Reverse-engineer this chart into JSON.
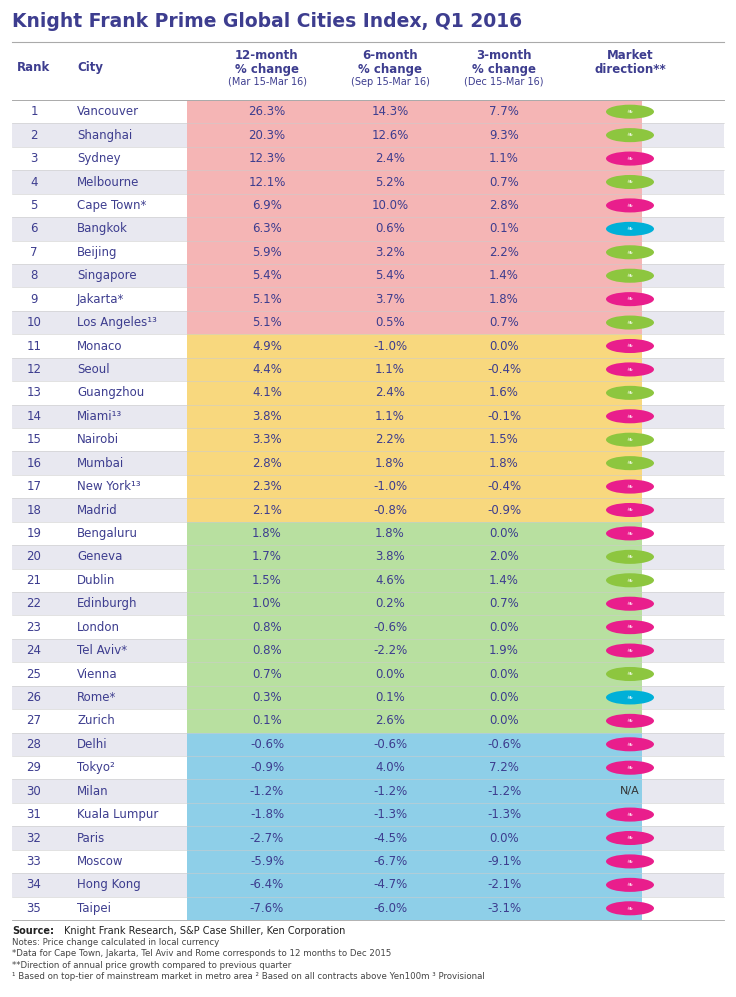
{
  "title": "Knight Frank Prime Global Cities Index, Q1 2016",
  "rows": [
    [
      1,
      "Vancouver",
      "26.3%",
      "14.3%",
      "7.7%",
      "lime"
    ],
    [
      2,
      "Shanghai",
      "20.3%",
      "12.6%",
      "9.3%",
      "lime"
    ],
    [
      3,
      "Sydney",
      "12.3%",
      "2.4%",
      "1.1%",
      "red"
    ],
    [
      4,
      "Melbourne",
      "12.1%",
      "5.2%",
      "0.7%",
      "lime"
    ],
    [
      5,
      "Cape Town*",
      "6.9%",
      "10.0%",
      "2.8%",
      "red"
    ],
    [
      6,
      "Bangkok",
      "6.3%",
      "0.6%",
      "0.1%",
      "cyan"
    ],
    [
      7,
      "Beijing",
      "5.9%",
      "3.2%",
      "2.2%",
      "lime"
    ],
    [
      8,
      "Singapore",
      "5.4%",
      "5.4%",
      "1.4%",
      "lime"
    ],
    [
      9,
      "Jakarta*",
      "5.1%",
      "3.7%",
      "1.8%",
      "red"
    ],
    [
      10,
      "Los Angeles¹³",
      "5.1%",
      "0.5%",
      "0.7%",
      "lime"
    ],
    [
      11,
      "Monaco",
      "4.9%",
      "-1.0%",
      "0.0%",
      "red"
    ],
    [
      12,
      "Seoul",
      "4.4%",
      "1.1%",
      "-0.4%",
      "red"
    ],
    [
      13,
      "Guangzhou",
      "4.1%",
      "2.4%",
      "1.6%",
      "lime"
    ],
    [
      14,
      "Miami¹³",
      "3.8%",
      "1.1%",
      "-0.1%",
      "red"
    ],
    [
      15,
      "Nairobi",
      "3.3%",
      "2.2%",
      "1.5%",
      "lime"
    ],
    [
      16,
      "Mumbai",
      "2.8%",
      "1.8%",
      "1.8%",
      "lime"
    ],
    [
      17,
      "New York¹³",
      "2.3%",
      "-1.0%",
      "-0.4%",
      "red"
    ],
    [
      18,
      "Madrid",
      "2.1%",
      "-0.8%",
      "-0.9%",
      "red"
    ],
    [
      19,
      "Bengaluru",
      "1.8%",
      "1.8%",
      "0.0%",
      "red"
    ],
    [
      20,
      "Geneva",
      "1.7%",
      "3.8%",
      "2.0%",
      "lime"
    ],
    [
      21,
      "Dublin",
      "1.5%",
      "4.6%",
      "1.4%",
      "lime"
    ],
    [
      22,
      "Edinburgh",
      "1.0%",
      "0.2%",
      "0.7%",
      "red"
    ],
    [
      23,
      "London",
      "0.8%",
      "-0.6%",
      "0.0%",
      "red"
    ],
    [
      24,
      "Tel Aviv*",
      "0.8%",
      "-2.2%",
      "1.9%",
      "red"
    ],
    [
      25,
      "Vienna",
      "0.7%",
      "0.0%",
      "0.0%",
      "lime"
    ],
    [
      26,
      "Rome*",
      "0.3%",
      "0.1%",
      "0.0%",
      "cyan"
    ],
    [
      27,
      "Zurich",
      "0.1%",
      "2.6%",
      "0.0%",
      "red"
    ],
    [
      28,
      "Delhi",
      "-0.6%",
      "-0.6%",
      "-0.6%",
      "red"
    ],
    [
      29,
      "Tokyo²",
      "-0.9%",
      "4.0%",
      "7.2%",
      "red"
    ],
    [
      30,
      "Milan",
      "-1.2%",
      "-1.2%",
      "-1.2%",
      "na"
    ],
    [
      31,
      "Kuala Lumpur",
      "-1.8%",
      "-1.3%",
      "-1.3%",
      "red"
    ],
    [
      32,
      "Paris",
      "-2.7%",
      "-4.5%",
      "0.0%",
      "red"
    ],
    [
      33,
      "Moscow",
      "-5.9%",
      "-6.7%",
      "-9.1%",
      "red"
    ],
    [
      34,
      "Hong Kong",
      "-6.4%",
      "-4.7%",
      "-2.1%",
      "red"
    ],
    [
      35,
      "Taipei",
      "-7.6%",
      "-6.0%",
      "-3.1%",
      "red"
    ]
  ],
  "zone_bg": {
    "pink_light": "#fde8e8",
    "pink_dark": "#f5c5c5",
    "yellow_light": "#fef8e0",
    "yellow_data": "#f9d87a",
    "green_light": "#edf7e8",
    "green_data": "#c5e8b0",
    "blue_light": "#e0f0fa",
    "blue_data": "#a8d8f0"
  },
  "col_data_colors": {
    "pink": "#f5b8b8",
    "yellow": "#f5d98a",
    "green": "#b8dfa0",
    "blue": "#8ecfed"
  },
  "row_alt_color": "#e8e8f0",
  "row_white_color": "#ffffff",
  "title_color": "#3d3d8f",
  "header_text_color": "#3d3d8f",
  "data_text_color": "#3d3d8f",
  "icon_colors": {
    "lime": "#8dc63f",
    "red": "#e91e8c",
    "cyan": "#00b0d8"
  },
  "source_bold": "Source:",
  "source_rest": " Knight Frank Research, S&P Case Shiller, Ken Corporation",
  "notes": [
    "Notes: Price change calculated in local currency",
    "*Data for Cape Town, Jakarta, Tel Aviv and Rome corresponds to 12 months to Dec 2015",
    "**Direction of annual price growth compared to previous quarter",
    "¹ Based on top-tier of mainstream market in metro area ² Based on all contracts above Yen100m ³ Provisional"
  ]
}
